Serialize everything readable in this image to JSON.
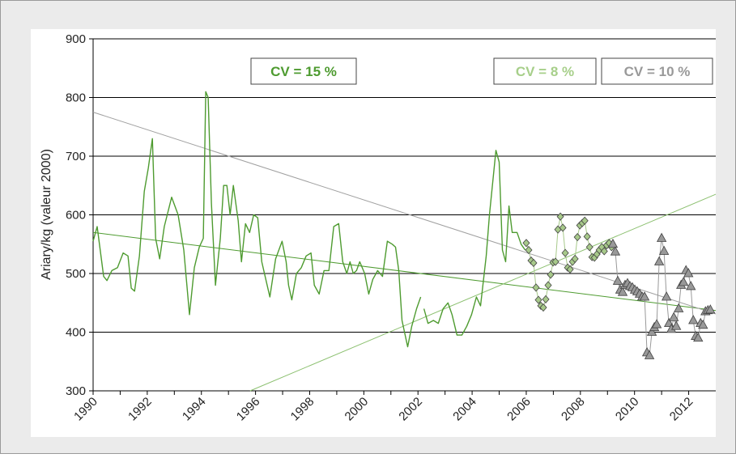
{
  "chart_data": {
    "type": "line",
    "y_label": "Ariary/kg (valeur 2000)",
    "xlim": [
      1990,
      2013
    ],
    "ylim": [
      300,
      900
    ],
    "xticks": [
      1990,
      1992,
      1994,
      1996,
      1998,
      2000,
      2002,
      2004,
      2006,
      2008,
      2010,
      2012
    ],
    "yticks": [
      300,
      400,
      500,
      600,
      700,
      800,
      900
    ],
    "grid": true,
    "series": [
      {
        "color": "#4e9b30",
        "marker": null,
        "x": [
          1990.0,
          1990.15,
          1990.39,
          1990.51,
          1990.69,
          1990.9,
          1991.11,
          1991.29,
          1991.41,
          1991.53,
          1991.71,
          1991.89,
          1992.04,
          1992.19,
          1992.31,
          1992.46,
          1992.63,
          1992.9,
          1993.14,
          1993.35,
          1993.56,
          1993.74,
          1993.92,
          1994.07,
          1994.16,
          1994.25,
          1994.37,
          1994.52,
          1994.7,
          1994.82,
          1994.94,
          1995.06,
          1995.18,
          1995.36,
          1995.48,
          1995.63,
          1995.78,
          1995.93,
          1996.08,
          1996.23,
          1996.38,
          1996.53,
          1996.74,
          1996.98,
          1997.13,
          1997.22,
          1997.34,
          1997.51,
          1997.69,
          1997.87,
          1998.05,
          1998.17,
          1998.35,
          1998.53,
          1998.71,
          1998.89,
          1999.07,
          1999.22,
          1999.37,
          1999.49,
          1999.61,
          1999.73,
          1999.85,
          2000.03,
          2000.18,
          2000.33,
          2000.51,
          2000.69,
          2000.87,
          2001.05,
          2001.17,
          2001.29,
          2001.41,
          2001.62,
          2001.77,
          2001.95,
          2002.1,
          2002.16,
          2002.22,
          2002.37,
          2002.57,
          2002.75,
          2002.93,
          2003.11,
          2003.26,
          2003.44,
          2003.62,
          2003.8,
          2003.98,
          2004.16,
          2004.31,
          2004.52,
          2004.64,
          2004.88,
          2005.0,
          2005.12,
          2005.24,
          2005.36,
          2005.48,
          2005.66,
          2005.81,
          2005.96
        ],
        "values": [
          555,
          580,
          495,
          488,
          505,
          510,
          535,
          530,
          475,
          470,
          530,
          640,
          680,
          730,
          560,
          525,
          580,
          630,
          600,
          540,
          430,
          510,
          545,
          560,
          810,
          800,
          620,
          480,
          560,
          650,
          650,
          600,
          650,
          590,
          520,
          585,
          570,
          600,
          595,
          520,
          490,
          460,
          525,
          555,
          520,
          480,
          455,
          500,
          510,
          530,
          535,
          480,
          465,
          505,
          505,
          580,
          585,
          520,
          500,
          520,
          500,
          505,
          520,
          500,
          465,
          490,
          505,
          495,
          555,
          550,
          545,
          505,
          420,
          375,
          410,
          440,
          460,
          null,
          440,
          415,
          420,
          415,
          440,
          450,
          430,
          395,
          395,
          410,
          430,
          460,
          445,
          530,
          600,
          710,
          690,
          540,
          520,
          615,
          570,
          570,
          550,
          540
        ]
      },
      {
        "color": "#a7c98a",
        "marker": "diamond",
        "x": [
          2006.0,
          2006.09,
          2006.18,
          2006.27,
          2006.36,
          2006.45,
          2006.54,
          2006.63,
          2006.72,
          2006.81,
          2006.9,
          2006.99,
          2007.08,
          2007.17,
          2007.26,
          2007.35,
          2007.44,
          2007.53,
          2007.62,
          2007.71,
          2007.8,
          2007.89,
          2007.98,
          2008.07,
          2008.16,
          2008.25,
          2008.34,
          2008.43,
          2008.52,
          2008.61,
          2008.7,
          2008.79,
          2008.88,
          2008.97,
          2009.06,
          2009.15
        ],
        "values": [
          552,
          540,
          522,
          518,
          476,
          455,
          445,
          442,
          456,
          480,
          498,
          519,
          520,
          575,
          597,
          578,
          535,
          510,
          507,
          520,
          525,
          562,
          582,
          586,
          590,
          563,
          545,
          528,
          527,
          533,
          540,
          545,
          538,
          548,
          552,
          545
        ]
      },
      {
        "color": "#999999",
        "marker": "triangle",
        "x": [
          2009.2,
          2009.29,
          2009.38,
          2009.47,
          2009.56,
          2009.65,
          2009.74,
          2009.83,
          2009.92,
          2010.01,
          2010.1,
          2010.19,
          2010.28,
          2010.37,
          2010.46,
          2010.55,
          2010.64,
          2010.73,
          2010.82,
          2010.91,
          2011.0,
          2011.09,
          2011.18,
          2011.27,
          2011.36,
          2011.45,
          2011.54,
          2011.63,
          2011.72,
          2011.81,
          2011.9,
          2011.99,
          2012.08,
          2012.17,
          2012.26,
          2012.35,
          2012.44,
          2012.53,
          2012.62,
          2012.71,
          2012.8
        ],
        "values": [
          550,
          537,
          487,
          472,
          468,
          480,
          483,
          478,
          476,
          472,
          469,
          465,
          460,
          460,
          365,
          360,
          400,
          408,
          413,
          520,
          560,
          538,
          460,
          415,
          405,
          425,
          410,
          440,
          480,
          485,
          505,
          500,
          478,
          420,
          393,
          390,
          415,
          412,
          435,
          437,
          438
        ]
      }
    ],
    "trendlines": [
      {
        "color": "#4e9b30",
        "x": [
          1990,
          2013
        ],
        "values": [
          570,
          437
        ]
      },
      {
        "color": "#a0a0a0",
        "x": [
          1990,
          2013
        ],
        "values": [
          775,
          431
        ]
      },
      {
        "color": "#8cc070",
        "x": [
          1995.8,
          2013
        ],
        "values": [
          300,
          635
        ]
      }
    ],
    "annotations": [
      {
        "text": "CV = 15 %",
        "color": "#4e9b30"
      },
      {
        "text": "CV = 8 %",
        "color": "#a7cf8a"
      },
      {
        "text": "CV = 10 %",
        "color": "#999999"
      }
    ]
  }
}
